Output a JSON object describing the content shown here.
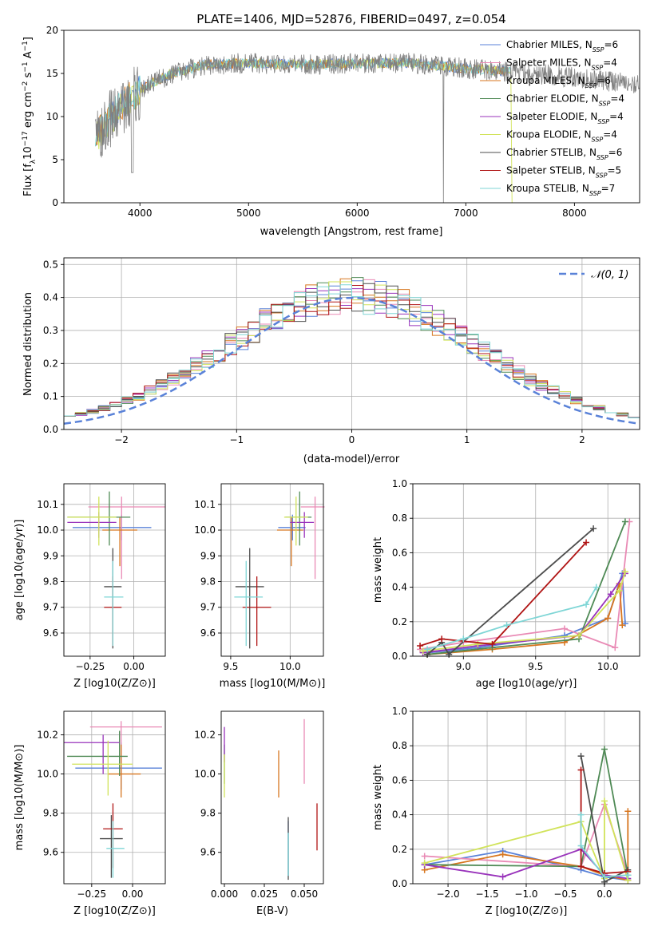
{
  "figure_title": "PLATE=1406, MJD=52876, FIBERID=0497, z=0.054",
  "models": [
    {
      "name": "Chabrier MILES",
      "color": "#5a82d8",
      "nssp": "6"
    },
    {
      "name": "Salpeter MILES",
      "color": "#e98ab5",
      "nssp": "4"
    },
    {
      "name": "Kroupa MILES",
      "color": "#d7761f",
      "nssp": "6"
    },
    {
      "name": "Chabrier ELODIE",
      "color": "#4f8a55",
      "nssp": "4"
    },
    {
      "name": "Salpeter ELODIE",
      "color": "#9933bb",
      "nssp": "4"
    },
    {
      "name": "Kroupa ELODIE",
      "color": "#d1e35a",
      "nssp": "4"
    },
    {
      "name": "Chabrier STELIB",
      "color": "#4d4d4d",
      "nssp": "6"
    },
    {
      "name": "Salpeter STELIB",
      "color": "#b01414",
      "nssp": "5"
    },
    {
      "name": "Kroupa STELIB",
      "color": "#7fd6d6",
      "nssp": "7"
    }
  ],
  "chart_data": [
    {
      "id": "spectrum",
      "type": "line",
      "xlabel": "wavelength [Angstrom, rest frame]",
      "ylabel_parts": [
        "Flux [f",
        "λ",
        "10",
        "−17",
        " erg cm",
        "−2",
        " s",
        "−1",
        " A",
        "−1",
        "]"
      ],
      "xlim": [
        3300,
        8600
      ],
      "ylim": [
        0,
        20
      ],
      "xticks": [
        4000,
        5000,
        6000,
        7000,
        8000
      ],
      "yticks": [
        0,
        5,
        10,
        15,
        20
      ],
      "data_color": "#808080",
      "data_range": [
        3590,
        8600
      ],
      "continuum": [
        [
          3590,
          7.5
        ],
        [
          3700,
          9.5
        ],
        [
          3900,
          12.0
        ],
        [
          4050,
          13.5
        ],
        [
          4300,
          15.0
        ],
        [
          4600,
          16.0
        ],
        [
          5000,
          16.2
        ],
        [
          5500,
          16.0
        ],
        [
          6000,
          16.2
        ],
        [
          6500,
          16.2
        ],
        [
          7000,
          15.6
        ],
        [
          7400,
          15.2
        ],
        [
          7800,
          14.8
        ],
        [
          8200,
          14.2
        ],
        [
          8600,
          13.8
        ]
      ],
      "model_range": [
        3590,
        7420
      ]
    },
    {
      "id": "residuals",
      "type": "histogram",
      "xlabel": "(data-model)/error",
      "ylabel": "Normed distribution",
      "xlim": [
        -2.5,
        2.5
      ],
      "ylim": [
        0,
        0.52
      ],
      "xticks": [
        -2,
        -1,
        0,
        1,
        2
      ],
      "yticks": [
        0.0,
        0.1,
        0.2,
        0.3,
        0.4,
        0.5
      ],
      "bin_width": 0.1,
      "reference_label": "𝒩(0, 1)",
      "reference_color": "#5a82d8",
      "grid": true,
      "legend_position": "upper right"
    },
    {
      "id": "age_vs_Z",
      "type": "errorbar",
      "xlabel": "Z [log10(Z/Z⊙)]",
      "ylabel": "age [log10(age/yr)]",
      "xlim": [
        -0.4,
        0.18
      ],
      "ylim": [
        9.51,
        10.18
      ],
      "xticks": [
        -0.25,
        0.0
      ],
      "yticks": [
        9.6,
        9.7,
        9.8,
        9.9,
        10.0,
        10.1
      ],
      "grid": true,
      "points": [
        {
          "model": 0,
          "x": -0.07,
          "xe": [
            0.28,
            0.17
          ],
          "y": 10.01,
          "ye": [
            0.05,
            0.05
          ]
        },
        {
          "model": 1,
          "x": -0.07,
          "xe": [
            0.19,
            0.25
          ],
          "y": 10.09,
          "ye": [
            0.28,
            0.04
          ]
        },
        {
          "model": 2,
          "x": -0.08,
          "xe": [
            0.1,
            0.1
          ],
          "y": 10.0,
          "ye": [
            0.14,
            0.05
          ]
        },
        {
          "model": 3,
          "x": -0.14,
          "xe": [
            0.24,
            0.12
          ],
          "y": 10.05,
          "ye": [
            0.11,
            0.1
          ]
        },
        {
          "model": 4,
          "x": -0.2,
          "xe": [
            0.18,
            0.1
          ],
          "y": 10.03,
          "ye": [
            0.06,
            0.04
          ]
        },
        {
          "model": 5,
          "x": -0.2,
          "xe": [
            0.18,
            0.1
          ],
          "y": 10.05,
          "ye": [
            0.11,
            0.08
          ]
        },
        {
          "model": 6,
          "x": -0.12,
          "xe": [
            0.05,
            0.05
          ],
          "y": 9.78,
          "ye": [
            0.24,
            0.15
          ]
        },
        {
          "model": 7,
          "x": -0.12,
          "xe": [
            0.05,
            0.05
          ],
          "y": 9.7,
          "ye": [
            0.15,
            0.12
          ]
        },
        {
          "model": 8,
          "x": -0.12,
          "xe": [
            0.05,
            0.06
          ],
          "y": 9.74,
          "ye": [
            0.19,
            0.14
          ]
        }
      ]
    },
    {
      "id": "age_vs_mass",
      "type": "errorbar",
      "xlabel": "mass [log10(M/M⊙)]",
      "ylabel": "",
      "xlim": [
        9.42,
        10.28
      ],
      "ylim": [
        9.51,
        10.18
      ],
      "xticks": [
        9.5,
        10.0
      ],
      "yticks": [
        9.6,
        9.7,
        9.8,
        9.9,
        10.0,
        10.1
      ],
      "grid": true,
      "points": [
        {
          "model": 0,
          "x": 10.02,
          "xe": [
            0.12,
            0.11
          ],
          "y": 10.01,
          "ye": [
            0.05,
            0.05
          ]
        },
        {
          "model": 1,
          "x": 10.21,
          "xe": [
            0.12,
            0.08
          ],
          "y": 10.09,
          "ye": [
            0.28,
            0.04
          ]
        },
        {
          "model": 2,
          "x": 10.01,
          "xe": [
            0.12,
            0.1
          ],
          "y": 10.0,
          "ye": [
            0.14,
            0.05
          ]
        },
        {
          "model": 3,
          "x": 10.08,
          "xe": [
            0.12,
            0.1
          ],
          "y": 10.05,
          "ye": [
            0.11,
            0.1
          ]
        },
        {
          "model": 4,
          "x": 10.12,
          "xe": [
            0.12,
            0.08
          ],
          "y": 10.03,
          "ye": [
            0.06,
            0.04
          ]
        },
        {
          "model": 5,
          "x": 10.05,
          "xe": [
            0.1,
            0.1
          ],
          "y": 10.05,
          "ye": [
            0.11,
            0.08
          ]
        },
        {
          "model": 6,
          "x": 9.66,
          "xe": [
            0.12,
            0.12
          ],
          "y": 9.78,
          "ye": [
            0.24,
            0.15
          ]
        },
        {
          "model": 7,
          "x": 9.72,
          "xe": [
            0.12,
            0.12
          ],
          "y": 9.7,
          "ye": [
            0.15,
            0.12
          ]
        },
        {
          "model": 8,
          "x": 9.63,
          "xe": [
            0.1,
            0.14
          ],
          "y": 9.74,
          "ye": [
            0.19,
            0.14
          ]
        }
      ]
    },
    {
      "id": "massweight_vs_age",
      "type": "line",
      "xlabel": "age [log10(age/yr)]",
      "ylabel": "mass weight",
      "xlim": [
        8.65,
        10.22
      ],
      "ylim": [
        0,
        1
      ],
      "xticks": [
        9.0,
        9.5,
        10.0
      ],
      "yticks": [
        0.0,
        0.2,
        0.4,
        0.6,
        0.8,
        1.0
      ],
      "grid": true,
      "series": [
        {
          "model": 0,
          "x": [
            8.75,
            9.1,
            9.7,
            10.0,
            10.1,
            10.12
          ],
          "y": [
            0.02,
            0.05,
            0.12,
            0.22,
            0.48,
            0.19
          ]
        },
        {
          "model": 1,
          "x": [
            8.7,
            9.0,
            9.7,
            10.05,
            10.15
          ],
          "y": [
            0.04,
            0.08,
            0.16,
            0.05,
            0.78
          ]
        },
        {
          "model": 2,
          "x": [
            8.75,
            9.2,
            9.7,
            10.0,
            10.08,
            10.1
          ],
          "y": [
            0.01,
            0.04,
            0.08,
            0.22,
            0.42,
            0.18
          ]
        },
        {
          "model": 3,
          "x": [
            8.75,
            9.2,
            9.8,
            10.12
          ],
          "y": [
            0.01,
            0.05,
            0.1,
            0.78
          ]
        },
        {
          "model": 4,
          "x": [
            8.72,
            9.1,
            9.8,
            10.02,
            10.12
          ],
          "y": [
            0.02,
            0.06,
            0.12,
            0.36,
            0.48
          ]
        },
        {
          "model": 5,
          "x": [
            8.72,
            9.1,
            9.8,
            10.08,
            10.12
          ],
          "y": [
            0.03,
            0.07,
            0.12,
            0.38,
            0.49
          ]
        },
        {
          "model": 6,
          "x": [
            8.75,
            8.85,
            8.9,
            9.9
          ],
          "y": [
            0.01,
            0.08,
            0.01,
            0.74
          ]
        },
        {
          "model": 7,
          "x": [
            8.7,
            8.85,
            9.2,
            9.85
          ],
          "y": [
            0.06,
            0.1,
            0.07,
            0.66
          ]
        },
        {
          "model": 8,
          "x": [
            8.75,
            9.0,
            9.3,
            9.85,
            9.92
          ],
          "y": [
            0.04,
            0.1,
            0.18,
            0.3,
            0.4
          ]
        }
      ]
    },
    {
      "id": "mass_vs_Z",
      "type": "errorbar",
      "xlabel": "Z [log10(Z/Z⊙)]",
      "ylabel": "mass [log10(M/M⊙)]",
      "xlim": [
        -0.42,
        0.2
      ],
      "ylim": [
        9.44,
        10.32
      ],
      "xticks": [
        -0.25,
        0.0
      ],
      "yticks": [
        9.6,
        9.8,
        10.0,
        10.2
      ],
      "grid": true,
      "points": [
        {
          "model": 0,
          "x": -0.07,
          "xe": [
            0.28,
            0.25
          ],
          "y": 10.03,
          "ye": [
            0.11,
            0.13
          ]
        },
        {
          "model": 1,
          "x": -0.07,
          "xe": [
            0.19,
            0.25
          ],
          "y": 10.24,
          "ye": [
            0.26,
            0.03
          ]
        },
        {
          "model": 2,
          "x": -0.07,
          "xe": [
            0.08,
            0.12
          ],
          "y": 10.0,
          "ye": [
            0.12,
            0.15
          ]
        },
        {
          "model": 3,
          "x": -0.08,
          "xe": [
            0.32,
            0.05
          ],
          "y": 10.09,
          "ye": [
            0.1,
            0.13
          ]
        },
        {
          "model": 4,
          "x": -0.18,
          "xe": [
            0.24,
            0.1
          ],
          "y": 10.16,
          "ye": [
            0.16,
            0.04
          ]
        },
        {
          "model": 5,
          "x": -0.15,
          "xe": [
            0.22,
            0.15
          ],
          "y": 10.05,
          "ye": [
            0.16,
            0.12
          ]
        },
        {
          "model": 6,
          "x": -0.13,
          "xe": [
            0.07,
            0.07
          ],
          "y": 9.67,
          "ye": [
            0.2,
            0.12
          ]
        },
        {
          "model": 7,
          "x": -0.12,
          "xe": [
            0.06,
            0.06
          ],
          "y": 9.72,
          "ye": [
            0.2,
            0.13
          ]
        },
        {
          "model": 8,
          "x": -0.12,
          "xe": [
            0.04,
            0.07
          ],
          "y": 9.62,
          "ye": [
            0.15,
            0.14
          ]
        }
      ]
    },
    {
      "id": "mass_vs_EBV",
      "type": "errorbar",
      "xlabel": "E(B-V)",
      "ylabel": "",
      "xlim": [
        -0.002,
        0.062
      ],
      "ylim": [
        9.44,
        10.32
      ],
      "xticks": [
        0.0,
        0.025,
        0.05
      ],
      "yticks": [
        9.6,
        9.8,
        10.0,
        10.2
      ],
      "grid": false,
      "points": [
        {
          "model": 0,
          "x": 0.04,
          "xe": [
            0,
            0
          ],
          "y": 9.66,
          "ye": [
            0.18,
            0.1
          ]
        },
        {
          "model": 1,
          "x": 0.05,
          "xe": [
            0,
            0
          ],
          "y": 10.1,
          "ye": [
            0.15,
            0.18
          ]
        },
        {
          "model": 2,
          "x": 0.034,
          "xe": [
            0,
            0
          ],
          "y": 10.0,
          "ye": [
            0.12,
            0.12
          ]
        },
        {
          "model": 3,
          "x": 0.0,
          "xe": [
            0,
            0
          ],
          "y": 10.05,
          "ye": [
            0.1,
            0.1
          ]
        },
        {
          "model": 4,
          "x": 0.0,
          "xe": [
            0,
            0
          ],
          "y": 10.16,
          "ye": [
            0.1,
            0.08
          ]
        },
        {
          "model": 5,
          "x": 0.0,
          "xe": [
            0,
            0
          ],
          "y": 9.98,
          "ye": [
            0.1,
            0.12
          ]
        },
        {
          "model": 6,
          "x": 0.04,
          "xe": [
            0,
            0
          ],
          "y": 9.66,
          "ye": [
            0.2,
            0.12
          ]
        },
        {
          "model": 7,
          "x": 0.058,
          "xe": [
            0,
            0
          ],
          "y": 9.73,
          "ye": [
            0.12,
            0.12
          ]
        },
        {
          "model": 8,
          "x": 0.04,
          "xe": [
            0,
            0
          ],
          "y": 9.6,
          "ye": [
            0.12,
            0.1
          ]
        }
      ]
    },
    {
      "id": "massweight_vs_Z",
      "type": "line",
      "xlabel": "Z [log10(Z/Z⊙)]",
      "ylabel": "mass weight",
      "xlim": [
        -2.45,
        0.45
      ],
      "ylim": [
        0,
        1
      ],
      "xticks": [
        -2.0,
        -1.5,
        -1.0,
        -0.5,
        0.0
      ],
      "yticks": [
        0.0,
        0.2,
        0.4,
        0.6,
        0.8,
        1.0
      ],
      "grid": true,
      "series": [
        {
          "model": 0,
          "x": [
            -2.3,
            -1.3,
            -0.3,
            0.0,
            0.3
          ],
          "y": [
            0.11,
            0.19,
            0.08,
            0.04,
            0.02
          ]
        },
        {
          "model": 1,
          "x": [
            -2.3,
            -0.3,
            0.0,
            0.3
          ],
          "y": [
            0.16,
            0.1,
            0.46,
            0.05
          ]
        },
        {
          "model": 2,
          "x": [
            -2.3,
            -1.3,
            -0.3,
            0.0,
            0.3,
            0.3
          ],
          "y": [
            0.08,
            0.17,
            0.1,
            0.05,
            0.02,
            0.42
          ]
        },
        {
          "model": 3,
          "x": [
            -2.3,
            -0.3,
            0.0,
            0.3
          ],
          "y": [
            0.11,
            0.1,
            0.78,
            0.05
          ]
        },
        {
          "model": 4,
          "x": [
            -2.3,
            -1.3,
            -0.3,
            0.0,
            0.3
          ],
          "y": [
            0.11,
            0.04,
            0.2,
            0.05,
            0.03
          ]
        },
        {
          "model": 5,
          "x": [
            -2.3,
            -0.3,
            0.0,
            0.0,
            0.3
          ],
          "y": [
            0.12,
            0.36,
            0.03,
            0.48,
            0.02
          ]
        },
        {
          "model": 6,
          "x": [
            -0.3,
            0.0,
            0.3
          ],
          "y": [
            0.74,
            0.01,
            0.08
          ]
        },
        {
          "model": 7,
          "x": [
            -0.3,
            -0.3,
            0.0,
            0.3
          ],
          "y": [
            0.66,
            0.1,
            0.06,
            0.07
          ]
        },
        {
          "model": 8,
          "x": [
            -0.3,
            -0.3,
            0.0,
            0.3
          ],
          "y": [
            0.4,
            0.22,
            0.04,
            0.05
          ]
        }
      ]
    }
  ]
}
